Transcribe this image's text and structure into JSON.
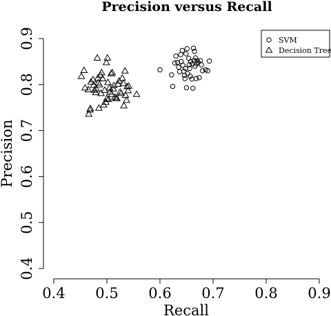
{
  "chart_data": {
    "type": "scatter",
    "title": "Precision versus Recall",
    "xlabel": "Recall",
    "ylabel": "Precision",
    "xlim": [
      0.4,
      0.9
    ],
    "ylim": [
      0.4,
      0.9
    ],
    "xticks": [
      "0.4",
      "0.5",
      "0.6",
      "0.7",
      "0.8",
      "0.9"
    ],
    "yticks": [
      "0.4",
      "0.5",
      "0.6",
      "0.7",
      "0.8",
      "0.9"
    ],
    "xtick_values": [
      0.4,
      0.5,
      0.6,
      0.7,
      0.8,
      0.9
    ],
    "ytick_values": [
      0.4,
      0.5,
      0.6,
      0.7,
      0.8,
      0.9
    ],
    "grid": false,
    "legend_position": "top-right",
    "series": [
      {
        "name": "SVM",
        "marker": "circle",
        "points": [
          [
            0.6,
            0.832
          ],
          [
            0.622,
            0.821
          ],
          [
            0.624,
            0.796
          ],
          [
            0.628,
            0.847
          ],
          [
            0.63,
            0.862
          ],
          [
            0.633,
            0.848
          ],
          [
            0.635,
            0.838
          ],
          [
            0.637,
            0.828
          ],
          [
            0.639,
            0.865
          ],
          [
            0.64,
            0.85
          ],
          [
            0.642,
            0.874
          ],
          [
            0.643,
            0.842
          ],
          [
            0.645,
            0.829
          ],
          [
            0.646,
            0.82
          ],
          [
            0.647,
            0.813
          ],
          [
            0.648,
            0.835
          ],
          [
            0.649,
            0.867
          ],
          [
            0.65,
            0.793
          ],
          [
            0.651,
            0.878
          ],
          [
            0.652,
            0.824
          ],
          [
            0.654,
            0.857
          ],
          [
            0.655,
            0.843
          ],
          [
            0.656,
            0.835
          ],
          [
            0.657,
            0.818
          ],
          [
            0.658,
            0.85
          ],
          [
            0.66,
            0.812
          ],
          [
            0.661,
            0.845
          ],
          [
            0.662,
            0.792
          ],
          [
            0.663,
            0.879
          ],
          [
            0.664,
            0.852
          ],
          [
            0.665,
            0.872
          ],
          [
            0.666,
            0.84
          ],
          [
            0.667,
            0.858
          ],
          [
            0.668,
            0.813
          ],
          [
            0.669,
            0.845
          ],
          [
            0.67,
            0.852
          ],
          [
            0.672,
            0.848
          ],
          [
            0.674,
            0.815
          ],
          [
            0.676,
            0.852
          ],
          [
            0.678,
            0.843
          ],
          [
            0.68,
            0.83
          ],
          [
            0.686,
            0.832
          ],
          [
            0.69,
            0.83
          ],
          [
            0.693,
            0.851
          ]
        ]
      },
      {
        "name": "Decision Tree",
        "marker": "triangle",
        "points": [
          [
            0.452,
            0.818
          ],
          [
            0.457,
            0.831
          ],
          [
            0.459,
            0.793
          ],
          [
            0.465,
            0.789
          ],
          [
            0.466,
            0.736
          ],
          [
            0.468,
            0.745
          ],
          [
            0.469,
            0.748
          ],
          [
            0.47,
            0.806
          ],
          [
            0.474,
            0.811
          ],
          [
            0.475,
            0.799
          ],
          [
            0.477,
            0.788
          ],
          [
            0.479,
            0.783
          ],
          [
            0.48,
            0.791
          ],
          [
            0.482,
            0.858
          ],
          [
            0.483,
            0.814
          ],
          [
            0.484,
            0.804
          ],
          [
            0.485,
            0.749
          ],
          [
            0.486,
            0.8
          ],
          [
            0.488,
            0.821
          ],
          [
            0.489,
            0.781
          ],
          [
            0.49,
            0.826
          ],
          [
            0.492,
            0.813
          ],
          [
            0.494,
            0.756
          ],
          [
            0.496,
            0.788
          ],
          [
            0.498,
            0.762
          ],
          [
            0.499,
            0.848
          ],
          [
            0.5,
            0.77
          ],
          [
            0.501,
            0.858
          ],
          [
            0.502,
            0.805
          ],
          [
            0.503,
            0.768
          ],
          [
            0.505,
            0.793
          ],
          [
            0.506,
            0.784
          ],
          [
            0.508,
            0.824
          ],
          [
            0.509,
            0.779
          ],
          [
            0.51,
            0.826
          ],
          [
            0.512,
            0.791
          ],
          [
            0.513,
            0.798
          ],
          [
            0.515,
            0.773
          ],
          [
            0.517,
            0.77
          ],
          [
            0.519,
            0.77
          ],
          [
            0.521,
            0.801
          ],
          [
            0.523,
            0.808
          ],
          [
            0.525,
            0.784
          ],
          [
            0.527,
            0.781
          ],
          [
            0.529,
            0.814
          ],
          [
            0.531,
            0.803
          ],
          [
            0.532,
            0.754
          ],
          [
            0.534,
            0.83
          ],
          [
            0.535,
            0.777
          ],
          [
            0.537,
            0.766
          ],
          [
            0.538,
            0.796
          ],
          [
            0.54,
            0.787
          ],
          [
            0.541,
            0.797
          ],
          [
            0.556,
            0.779
          ]
        ]
      }
    ]
  }
}
